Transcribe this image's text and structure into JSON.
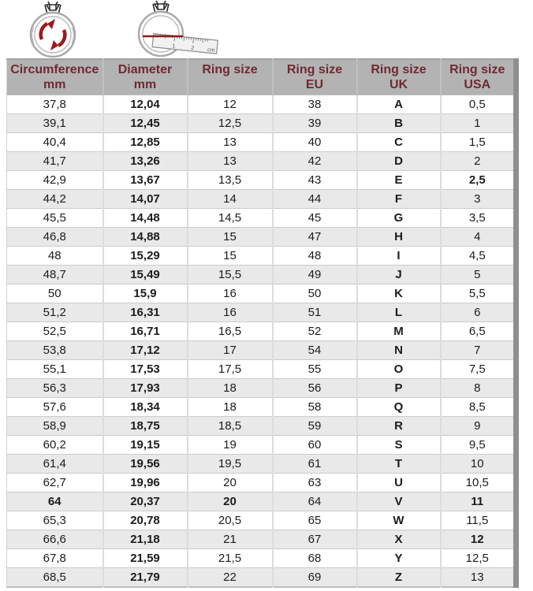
{
  "colors": {
    "header_bg": "#b3b3b3",
    "header_text": "#6f2a33",
    "accent_red": "#a01818",
    "ruler_line_red": "#8b1a1a",
    "alt_row_bg": "#e9e9e9",
    "row_border": "#cccccc",
    "right_shadow": "#8f8f8f",
    "ring_outline": "#a9a9a9"
  },
  "icons": {
    "ruler_labels": {
      "one": "1",
      "two": "2",
      "unit": "cm"
    }
  },
  "table": {
    "column_keys": [
      "circumference-mm",
      "diameter-mm",
      "ring-size",
      "ring-size-eu",
      "ring-size-uk",
      "ring-size-usa"
    ],
    "headers": [
      {
        "line1": "Circumference",
        "line2": "mm"
      },
      {
        "line1": "Diameter",
        "line2": "mm"
      },
      {
        "line1": "Ring size",
        "line2": ""
      },
      {
        "line1": "Ring size",
        "line2": "EU"
      },
      {
        "line1": "Ring size",
        "line2": "UK"
      },
      {
        "line1": "Ring size",
        "line2": "USA"
      }
    ],
    "bold_columns": [
      1,
      4
    ],
    "bold_cells": [
      [
        4,
        5
      ],
      [
        21,
        0
      ],
      [
        21,
        2
      ],
      [
        21,
        5
      ],
      [
        23,
        5
      ]
    ],
    "rows": [
      [
        "37,8",
        "12,04",
        "12",
        "38",
        "A",
        "0,5"
      ],
      [
        "39,1",
        "12,45",
        "12,5",
        "39",
        "B",
        "1"
      ],
      [
        "40,4",
        "12,85",
        "13",
        "40",
        "C",
        "1,5"
      ],
      [
        "41,7",
        "13,26",
        "13",
        "42",
        "D",
        "2"
      ],
      [
        "42,9",
        "13,67",
        "13,5",
        "43",
        "E",
        "2,5"
      ],
      [
        "44,2",
        "14,07",
        "14",
        "44",
        "F",
        "3"
      ],
      [
        "45,5",
        "14,48",
        "14,5",
        "45",
        "G",
        "3,5"
      ],
      [
        "46,8",
        "14,88",
        "15",
        "47",
        "H",
        "4"
      ],
      [
        "48",
        "15,29",
        "15",
        "48",
        "I",
        "4,5"
      ],
      [
        "48,7",
        "15,49",
        "15,5",
        "49",
        "J",
        "5"
      ],
      [
        "50",
        "15,9",
        "16",
        "50",
        "K",
        "5,5"
      ],
      [
        "51,2",
        "16,31",
        "16",
        "51",
        "L",
        "6"
      ],
      [
        "52,5",
        "16,71",
        "16,5",
        "52",
        "M",
        "6,5"
      ],
      [
        "53,8",
        "17,12",
        "17",
        "54",
        "N",
        "7"
      ],
      [
        "55,1",
        "17,53",
        "17,5",
        "55",
        "O",
        "7,5"
      ],
      [
        "56,3",
        "17,93",
        "18",
        "56",
        "P",
        "8"
      ],
      [
        "57,6",
        "18,34",
        "18",
        "58",
        "Q",
        "8,5"
      ],
      [
        "58,9",
        "18,75",
        "18,5",
        "59",
        "R",
        "9"
      ],
      [
        "60,2",
        "19,15",
        "19",
        "60",
        "S",
        "9,5"
      ],
      [
        "61,4",
        "19,56",
        "19,5",
        "61",
        "T",
        "10"
      ],
      [
        "62,7",
        "19,96",
        "20",
        "63",
        "U",
        "10,5"
      ],
      [
        "64",
        "20,37",
        "20",
        "64",
        "V",
        "11"
      ],
      [
        "65,3",
        "20,78",
        "20,5",
        "65",
        "W",
        "11,5"
      ],
      [
        "66,6",
        "21,18",
        "21",
        "67",
        "X",
        "12"
      ],
      [
        "67,8",
        "21,59",
        "21,5",
        "68",
        "Y",
        "12,5"
      ],
      [
        "68,5",
        "21,79",
        "22",
        "69",
        "Z",
        "13"
      ]
    ]
  }
}
